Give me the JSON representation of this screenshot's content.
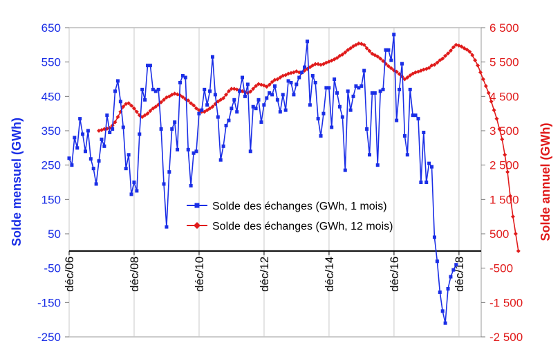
{
  "chart_data": {
    "type": "line",
    "title": "",
    "y_left": {
      "label": "Solde mensuel (GWh)",
      "range": [
        -250,
        650
      ],
      "ticks": [
        "650",
        "550",
        "450",
        "350",
        "250",
        "150",
        "50",
        "-50",
        "-150",
        "-250"
      ],
      "color": "#1a2ee6"
    },
    "y_right": {
      "label": "Solde annuel (GWh)",
      "range": [
        -2500,
        6500
      ],
      "ticks": [
        "6 500",
        "5 500",
        "4 500",
        "3 500",
        "2 500",
        "1 500",
        "500",
        "-500",
        "-1 500",
        "-2 500"
      ],
      "color": "#e01b1b"
    },
    "x_axis": {
      "range": [
        2006.917,
        2019.6
      ],
      "ticks": [
        {
          "label": "déc/06",
          "value": 2006.917
        },
        {
          "label": "déc/08",
          "value": 2008.917
        },
        {
          "label": "déc/10",
          "value": 2010.917
        },
        {
          "label": "déc/12",
          "value": 2012.917
        },
        {
          "label": "déc/14",
          "value": 2014.917
        },
        {
          "label": "déc/16",
          "value": 2016.917
        },
        {
          "label": "déc/18",
          "value": 2018.917
        }
      ],
      "zero_line_at": 0
    },
    "legend": {
      "placement": "center",
      "entries": [
        "Solde des échanges (GWh, 1 mois)",
        "Solde des échanges (GWh, 12 mois)"
      ]
    },
    "grid": {
      "vertical": true,
      "horizontal": false
    },
    "series": [
      {
        "name": "Solde des échanges (GWh, 1 mois)",
        "axis": "left",
        "color": "#1a2ee6",
        "marker": "square",
        "start": 2006.917,
        "step": 0.0833,
        "values": [
          270,
          250,
          330,
          300,
          385,
          340,
          290,
          350,
          268,
          240,
          195,
          262,
          325,
          305,
          395,
          345,
          355,
          465,
          495,
          435,
          360,
          240,
          280,
          165,
          200,
          175,
          340,
          470,
          440,
          540,
          540,
          470,
          465,
          470,
          355,
          195,
          70,
          230,
          355,
          375,
          295,
          490,
          510,
          505,
          295,
          190,
          285,
          290,
          400,
          410,
          470,
          425,
          465,
          565,
          455,
          390,
          265,
          305,
          365,
          380,
          415,
          440,
          405,
          465,
          505,
          450,
          485,
          290,
          420,
          415,
          440,
          375,
          425,
          445,
          460,
          455,
          480,
          440,
          405,
          455,
          410,
          495,
          490,
          455,
          485,
          505,
          520,
          535,
          610,
          425,
          510,
          490,
          385,
          335,
          400,
          475,
          475,
          360,
          500,
          460,
          420,
          390,
          235,
          465,
          410,
          450,
          480,
          475,
          480,
          525,
          355,
          280,
          460,
          460,
          250,
          465,
          470,
          585,
          585,
          555,
          630,
          380,
          470,
          545,
          335,
          280,
          470,
          395,
          395,
          385,
          200,
          345,
          200,
          255,
          245,
          40,
          -30,
          -120,
          -175,
          -210,
          -110,
          -75,
          -55,
          -40
        ]
      },
      {
        "name": "Solde des échanges (GWh, 12 mois)",
        "axis": "right",
        "color": "#e01b1b",
        "marker": "diamond",
        "start": 2007.833,
        "step": 0.0833,
        "values": [
          3500,
          3520,
          3550,
          3560,
          3580,
          3650,
          3750,
          3900,
          4050,
          4200,
          4280,
          4300,
          4230,
          4150,
          4050,
          3950,
          3900,
          3950,
          4000,
          4080,
          4150,
          4200,
          4260,
          4330,
          4400,
          4470,
          4500,
          4550,
          4580,
          4560,
          4530,
          4480,
          4420,
          4380,
          4300,
          4240,
          4150,
          4100,
          4050,
          4050,
          4100,
          4150,
          4200,
          4280,
          4350,
          4400,
          4450,
          4550,
          4650,
          4720,
          4720,
          4700,
          4680,
          4650,
          4620,
          4600,
          4640,
          4720,
          4800,
          4860,
          4840,
          4820,
          4780,
          4840,
          4920,
          4980,
          5000,
          5050,
          5100,
          5120,
          5160,
          5180,
          5200,
          5230,
          5200,
          5190,
          5250,
          5300,
          5350,
          5400,
          5440,
          5440,
          5420,
          5440,
          5480,
          5510,
          5540,
          5580,
          5620,
          5680,
          5720,
          5780,
          5850,
          5900,
          5960,
          6000,
          6040,
          6030,
          6000,
          5900,
          5820,
          5740,
          5700,
          5660,
          5600,
          5530,
          5450,
          5380,
          5320,
          5260,
          5220,
          5150,
          5080,
          5000,
          5050,
          5110,
          5160,
          5200,
          5220,
          5250,
          5280,
          5300,
          5330,
          5400,
          5420,
          5480,
          5550,
          5600,
          5680,
          5750,
          5830,
          5930,
          6000,
          5980,
          5950,
          5900,
          5860,
          5800,
          5700,
          5550,
          5400,
          5200,
          5000,
          4800,
          4600,
          4350,
          4100,
          3850,
          3550,
          3250,
          2800,
          2300,
          1600,
          1000,
          500,
          0
        ]
      }
    ]
  }
}
